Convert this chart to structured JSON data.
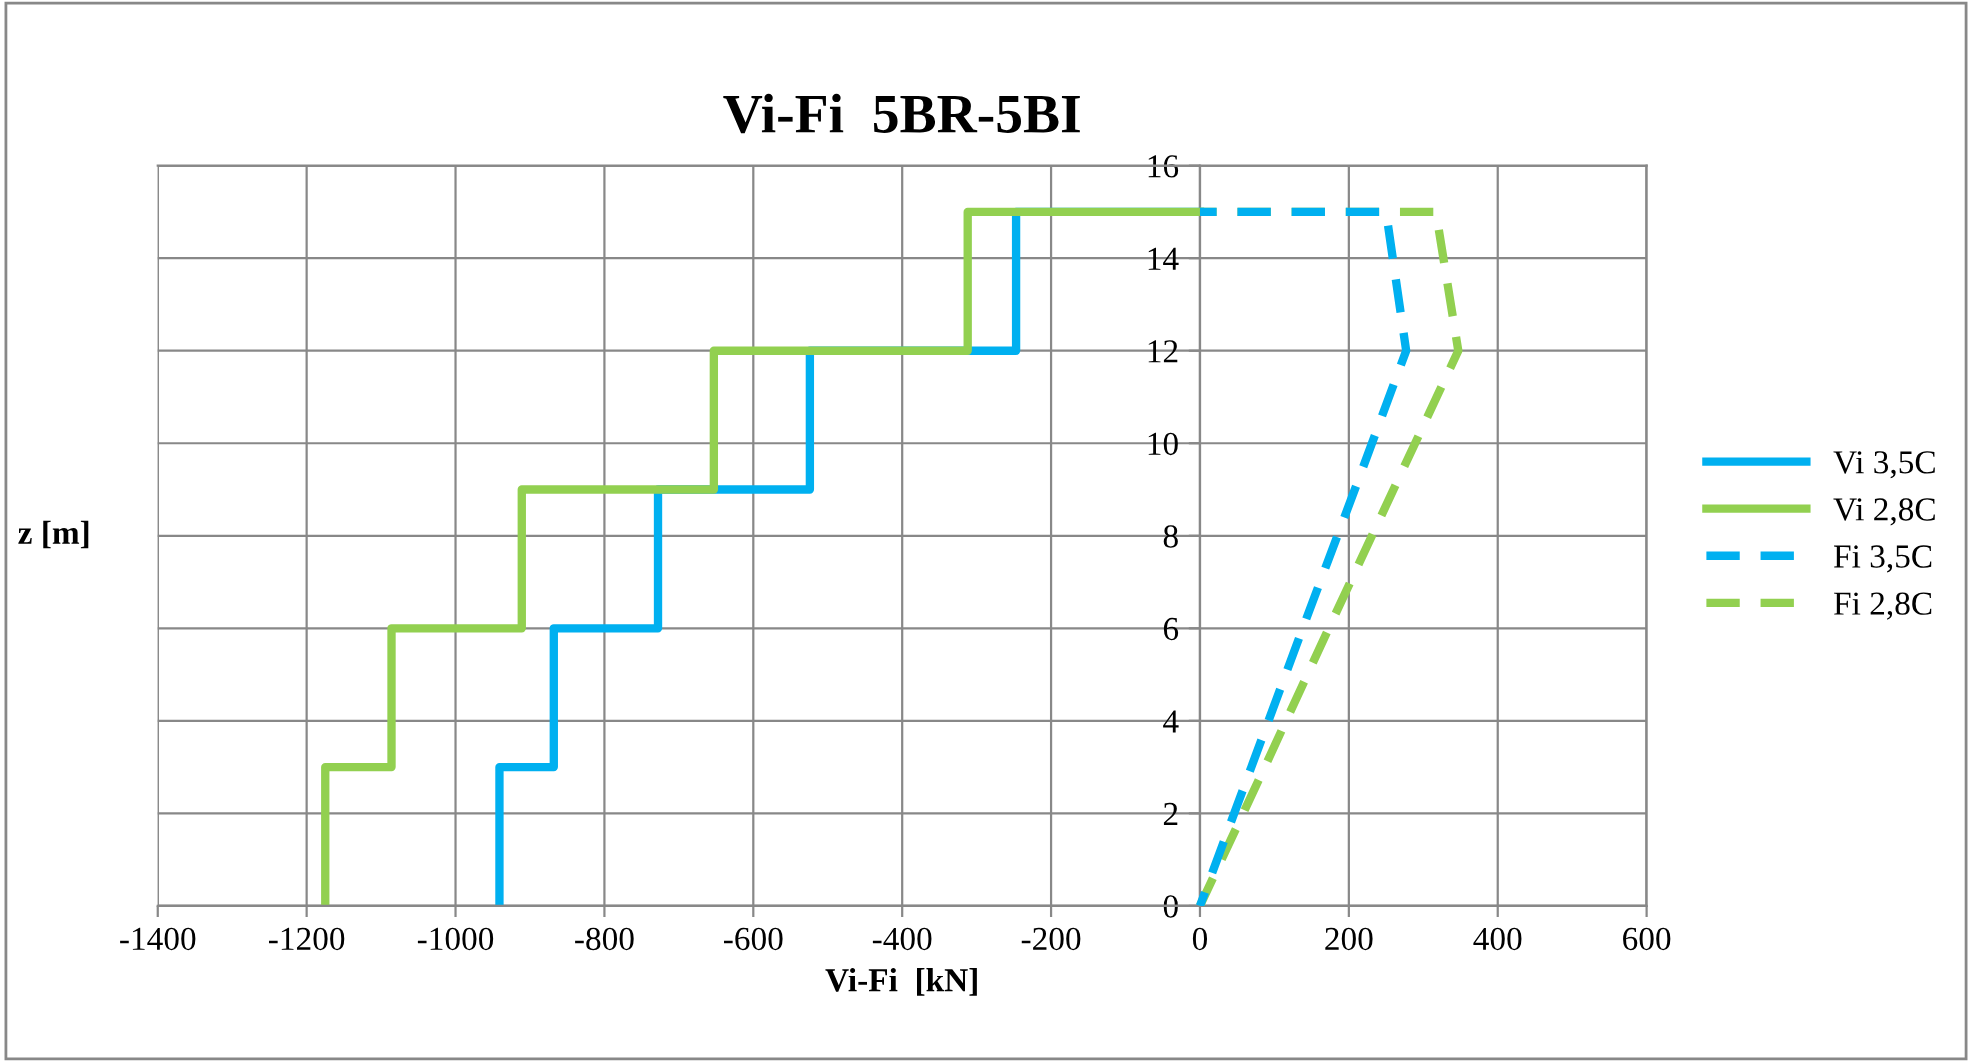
{
  "chart_data": {
    "type": "line",
    "title": "Vi-Fi  5BR-5BI",
    "xlabel": "Vi-Fi  [kN]",
    "ylabel": "z [m]",
    "xlim": [
      -1400,
      600
    ],
    "xticks": [
      -1400,
      -1200,
      -1000,
      -800,
      -600,
      -400,
      -200,
      0,
      200,
      400,
      600
    ],
    "ylim": [
      0,
      16
    ],
    "yticks": [
      0,
      2,
      4,
      6,
      8,
      10,
      12,
      14,
      16
    ],
    "grid": true,
    "legend": "right",
    "marker": "none",
    "series": [
      {
        "name": "Vi 3,5C",
        "color": "#00b0f0",
        "line_style": "solid",
        "x": [
          -941,
          -941,
          -868,
          -868,
          -728,
          -728,
          -524,
          -524,
          -247,
          -247,
          0
        ],
        "values": [
          0,
          3,
          3,
          6,
          6,
          9,
          9,
          12,
          12,
          15,
          15
        ]
      },
      {
        "name": "Vi 2,8C",
        "color": "#92d050",
        "line_style": "solid",
        "x": [
          -1175,
          -1175,
          -1086,
          -1086,
          -911,
          -911,
          -653,
          -653,
          -312,
          -312,
          0
        ],
        "values": [
          0,
          3,
          3,
          6,
          6,
          9,
          9,
          12,
          12,
          15,
          15
        ]
      },
      {
        "name": "Fi 3,5C",
        "color": "#00b0f0",
        "line_style": "dashed",
        "x": [
          0,
          69,
          138,
          208,
          277,
          250,
          0
        ],
        "values": [
          0,
          3,
          6,
          9,
          12,
          15,
          15
        ]
      },
      {
        "name": "Fi 2,8C",
        "color": "#92d050",
        "line_style": "dashed",
        "x": [
          0,
          87,
          173,
          260,
          347,
          317,
          0
        ],
        "values": [
          0,
          3,
          6,
          9,
          12,
          15,
          15
        ]
      }
    ]
  }
}
